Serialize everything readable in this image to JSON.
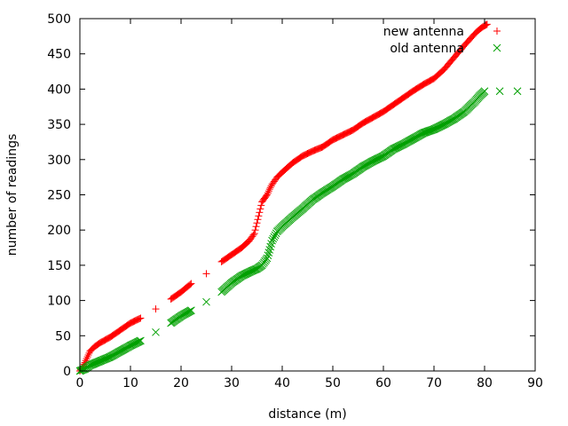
{
  "chart_data": {
    "type": "scatter",
    "xlabel": "distance (m)",
    "ylabel": "number of readings",
    "xlim": [
      0,
      90
    ],
    "ylim": [
      0,
      500
    ],
    "xticks": [
      0,
      10,
      20,
      30,
      40,
      50,
      60,
      70,
      80,
      90
    ],
    "yticks": [
      0,
      50,
      100,
      150,
      200,
      250,
      300,
      350,
      400,
      450,
      500
    ],
    "grid": false,
    "legend_position": "top-right",
    "series": [
      {
        "name": "new antenna",
        "marker": "plus",
        "color": "#ff0000",
        "points": [
          [
            0.0,
            0
          ],
          [
            0.5,
            5
          ],
          [
            1.0,
            12
          ],
          [
            1.5,
            20
          ],
          [
            2.0,
            28
          ],
          [
            3.0,
            35
          ],
          [
            4.0,
            40
          ],
          [
            6.0,
            48
          ],
          [
            8.0,
            58
          ],
          [
            10.0,
            68
          ],
          [
            12.0,
            75
          ],
          [
            15.0,
            88
          ],
          [
            18.0,
            102
          ],
          [
            20.0,
            112
          ],
          [
            22.0,
            124
          ],
          [
            25.0,
            138
          ],
          [
            28.0,
            155
          ],
          [
            30.0,
            165
          ],
          [
            32.0,
            175
          ],
          [
            33.5,
            185
          ],
          [
            34.5,
            195
          ],
          [
            35.0,
            210
          ],
          [
            35.5,
            225
          ],
          [
            36.0,
            240
          ],
          [
            36.5,
            245
          ],
          [
            37.0,
            250
          ],
          [
            37.5,
            258
          ],
          [
            38.0,
            265
          ],
          [
            39.0,
            275
          ],
          [
            40.0,
            282
          ],
          [
            42.0,
            295
          ],
          [
            44.0,
            305
          ],
          [
            46.0,
            312
          ],
          [
            48.0,
            318
          ],
          [
            50.0,
            328
          ],
          [
            52.0,
            335
          ],
          [
            54.0,
            342
          ],
          [
            56.0,
            352
          ],
          [
            58.0,
            360
          ],
          [
            60.0,
            368
          ],
          [
            62.0,
            378
          ],
          [
            64.0,
            388
          ],
          [
            66.0,
            398
          ],
          [
            68.0,
            407
          ],
          [
            70.0,
            415
          ],
          [
            72.0,
            428
          ],
          [
            74.0,
            445
          ],
          [
            76.0,
            462
          ],
          [
            78.0,
            478
          ],
          [
            79.0,
            485
          ],
          [
            80.0,
            490
          ],
          [
            80.5,
            492
          ]
        ]
      },
      {
        "name": "old antenna",
        "marker": "cross",
        "color": "#00a000",
        "points": [
          [
            0.0,
            0
          ],
          [
            1.0,
            3
          ],
          [
            2.0,
            8
          ],
          [
            4.0,
            14
          ],
          [
            6.0,
            20
          ],
          [
            8.0,
            28
          ],
          [
            10.0,
            36
          ],
          [
            12.0,
            43
          ],
          [
            15.0,
            55
          ],
          [
            18.0,
            68
          ],
          [
            20.0,
            78
          ],
          [
            22.0,
            86
          ],
          [
            25.0,
            98
          ],
          [
            28.0,
            112
          ],
          [
            30.0,
            125
          ],
          [
            32.0,
            135
          ],
          [
            34.0,
            142
          ],
          [
            35.0,
            145
          ],
          [
            36.0,
            150
          ],
          [
            37.0,
            160
          ],
          [
            37.5,
            172
          ],
          [
            38.0,
            185
          ],
          [
            39.0,
            198
          ],
          [
            40.0,
            205
          ],
          [
            42.0,
            218
          ],
          [
            44.0,
            230
          ],
          [
            46.0,
            243
          ],
          [
            48.0,
            253
          ],
          [
            50.0,
            262
          ],
          [
            52.0,
            272
          ],
          [
            54.0,
            280
          ],
          [
            56.0,
            290
          ],
          [
            58.0,
            298
          ],
          [
            60.0,
            305
          ],
          [
            62.0,
            315
          ],
          [
            64.0,
            322
          ],
          [
            66.0,
            330
          ],
          [
            68.0,
            338
          ],
          [
            70.0,
            343
          ],
          [
            72.0,
            350
          ],
          [
            74.0,
            358
          ],
          [
            76.0,
            368
          ],
          [
            78.0,
            382
          ],
          [
            79.0,
            390
          ],
          [
            80.0,
            397
          ],
          [
            83.0,
            397
          ],
          [
            86.5,
            397
          ]
        ]
      }
    ]
  }
}
